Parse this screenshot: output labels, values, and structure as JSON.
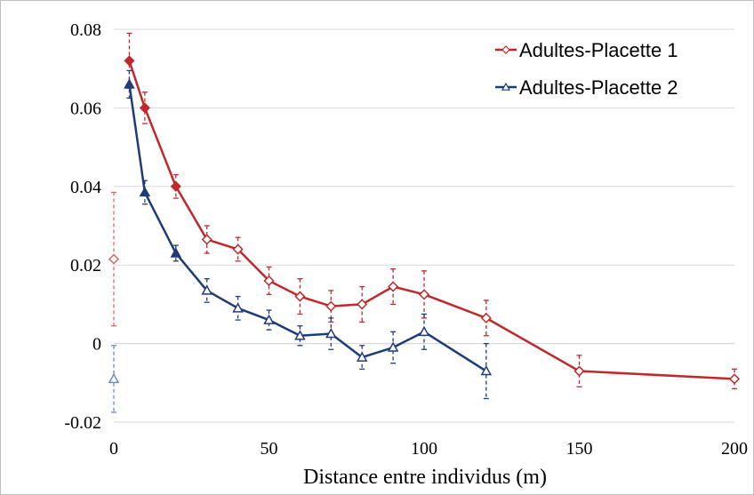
{
  "chart_data": {
    "type": "line",
    "title": "",
    "xlabel": "Distance entre individus (m)",
    "ylabel": "",
    "xlim": [
      0,
      200
    ],
    "ylim": [
      -0.02,
      0.08
    ],
    "x_ticks": [
      0,
      50,
      100,
      150,
      200
    ],
    "x_tick_labels": [
      "0",
      "50",
      "100",
      "150",
      "200"
    ],
    "y_ticks": [
      -0.02,
      0,
      0.02,
      0.04,
      0.06,
      0.08
    ],
    "y_tick_labels": [
      "-0.02",
      "0",
      "0.02",
      "0.04",
      "0.06",
      "0.08"
    ],
    "grid": "horizontal",
    "legend_position": "top-right",
    "series": [
      {
        "name": "Adultes-Placette 1",
        "color": "#c0282b",
        "marker": "diamond",
        "x": [
          5,
          10,
          20,
          30,
          40,
          50,
          60,
          70,
          80,
          90,
          100,
          120,
          150,
          200
        ],
        "y": [
          0.072,
          0.06,
          0.04,
          0.0265,
          0.024,
          0.016,
          0.012,
          0.0095,
          0.01,
          0.0145,
          0.0125,
          0.0065,
          -0.007,
          -0.009
        ],
        "err": [
          0.007,
          0.004,
          0.003,
          0.0035,
          0.003,
          0.0035,
          0.0045,
          0.004,
          0.0045,
          0.0045,
          0.006,
          0.0045,
          0.004,
          0.0025
        ]
      },
      {
        "name": "Adultes-Placette 2",
        "color": "#1f3c7a",
        "marker": "triangle",
        "x": [
          5,
          10,
          20,
          30,
          40,
          50,
          60,
          70,
          80,
          90,
          100,
          120
        ],
        "y": [
          0.066,
          0.0385,
          0.023,
          0.0135,
          0.009,
          0.006,
          0.002,
          0.0025,
          -0.0035,
          -0.001,
          0.003,
          -0.007
        ],
        "err": [
          0.0035,
          0.003,
          0.002,
          0.003,
          0.003,
          0.0025,
          0.0025,
          0.004,
          0.003,
          0.004,
          0.0045,
          0.007
        ]
      }
    ],
    "lag0_points": [
      {
        "series": "Adultes-Placette 1",
        "x": 0,
        "y": 0.0215,
        "err": 0.017,
        "color": "#e06666",
        "marker": "diamond"
      },
      {
        "series": "Adultes-Placette 2",
        "x": 0,
        "y": -0.009,
        "err": 0.0085,
        "color": "#6b8cc7",
        "marker": "triangle"
      }
    ]
  }
}
